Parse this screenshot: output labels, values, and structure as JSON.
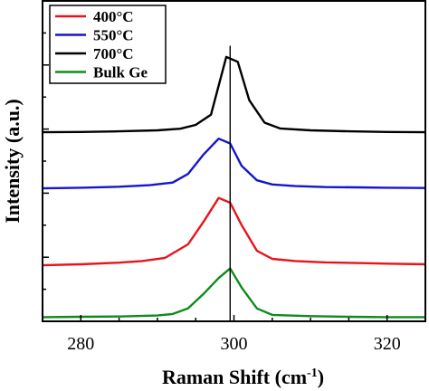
{
  "chart_data": {
    "type": "line",
    "xlabel": "Raman Shift (cm",
    "xlabel_superscript": "-1",
    "xlabel_suffix": ")",
    "ylabel": "Intensity (a.u.)",
    "xlim": [
      275,
      325
    ],
    "x_ticks": [
      280,
      300,
      320
    ],
    "ylim": [
      0,
      100
    ],
    "y_tick_labels": false,
    "grid": false,
    "legend_placement": "top-left",
    "reference_line_x": 299.5,
    "series": [
      {
        "name": "400°C",
        "color": "#e8141a",
        "x": [
          275,
          280,
          285,
          288,
          291,
          294,
          296,
          298,
          299.5,
          301,
          303,
          305,
          308,
          312,
          316,
          320,
          325
        ],
        "y": [
          17.5,
          17.8,
          18.3,
          18.8,
          19.8,
          24.0,
          31.0,
          38.5,
          37.0,
          30.0,
          22.0,
          19.5,
          18.8,
          18.4,
          18.2,
          18.0,
          17.8
        ]
      },
      {
        "name": "550°C",
        "color": "#1515cf",
        "x": [
          275,
          280,
          285,
          289,
          292,
          294,
          296,
          298,
          299.5,
          301,
          303,
          305,
          308,
          312,
          316,
          320,
          325
        ],
        "y": [
          41.5,
          41.7,
          42.0,
          42.5,
          43.3,
          46.0,
          52.0,
          57.0,
          55.5,
          48.5,
          44.0,
          42.7,
          42.2,
          41.9,
          41.8,
          41.7,
          41.6
        ]
      },
      {
        "name": "700°C",
        "color": "#000000",
        "x": [
          275,
          280,
          285,
          290,
          293,
          295,
          297,
          299,
          300.5,
          302,
          304,
          306,
          310,
          315,
          320,
          325
        ],
        "y": [
          59.0,
          59.1,
          59.3,
          59.6,
          60.1,
          61.3,
          64.5,
          82.5,
          81.0,
          69.0,
          62.0,
          60.2,
          59.6,
          59.3,
          59.1,
          59.0
        ]
      },
      {
        "name": "Bulk Ge",
        "color": "#0e8b1c",
        "x": [
          275,
          280,
          285,
          290,
          292,
          294,
          296,
          298,
          299.5,
          301,
          303,
          305,
          310,
          315,
          320,
          325
        ],
        "y": [
          1.3,
          1.4,
          1.5,
          1.8,
          2.3,
          4.0,
          8.5,
          13.5,
          16.5,
          10.5,
          4.0,
          2.0,
          1.6,
          1.4,
          1.3,
          1.3
        ]
      }
    ]
  }
}
